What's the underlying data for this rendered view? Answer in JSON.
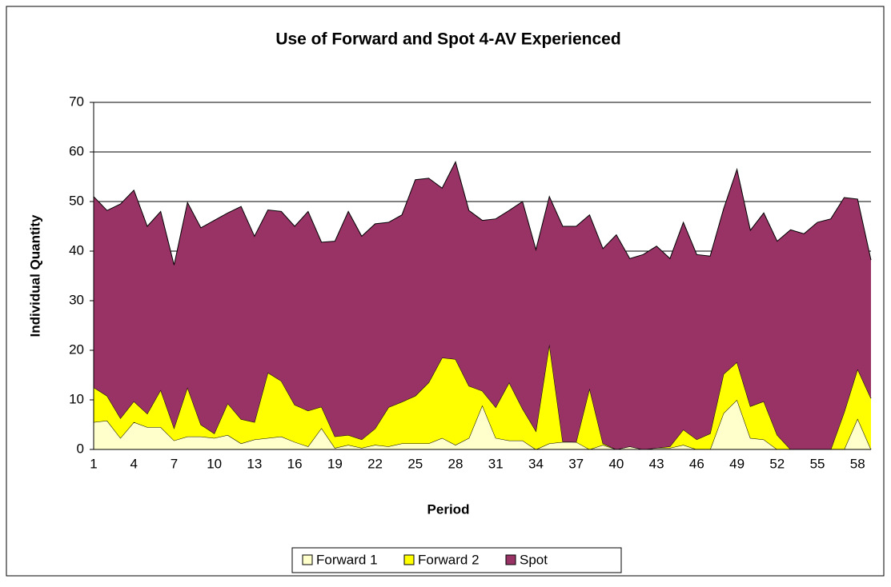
{
  "chart_data": {
    "type": "stacked_area",
    "title": "Use of Forward and Spot 4-AV Experienced",
    "x_label": "Period",
    "y_label": "Individual Quantity",
    "categories": [
      1,
      null,
      null,
      4,
      null,
      null,
      7,
      null,
      null,
      10,
      null,
      null,
      13,
      null,
      null,
      16,
      null,
      null,
      19,
      null,
      null,
      22,
      null,
      null,
      25,
      null,
      null,
      28,
      null,
      null,
      31,
      null,
      null,
      34,
      null,
      null,
      37,
      null,
      null,
      40,
      null,
      null,
      43,
      null,
      null,
      46,
      null,
      null,
      49,
      null,
      null,
      52,
      null,
      null,
      55,
      null,
      null,
      58,
      null
    ],
    "series": [
      {
        "name": "Forward 1",
        "color": "#ffffcc",
        "values": [
          5.5,
          5.8,
          2.3,
          5.5,
          4.5,
          4.5,
          1.8,
          2.6,
          2.6,
          2.3,
          2.9,
          1.2,
          2,
          2.3,
          2.6,
          1.5,
          0.6,
          4.3,
          0.3,
          0.9,
          0.3,
          0.9,
          0.6,
          1.2,
          1.2,
          1.2,
          2.3,
          0.9,
          2.3,
          8.9,
          2.3,
          1.8,
          1.8,
          0,
          1.2,
          1.5,
          1.5,
          0,
          0.9,
          0,
          0.6,
          0,
          0.3,
          0.3,
          0.9,
          0,
          0,
          7.3,
          10,
          2.3,
          2,
          0,
          0,
          0,
          0,
          0,
          0,
          6.2,
          0
        ]
      },
      {
        "name": "Forward 2",
        "color": "#ffff00",
        "values": [
          7,
          5,
          4,
          4.2,
          2.7,
          7.5,
          2.5,
          9.9,
          2.4,
          0.9,
          6.4,
          4.9,
          3.5,
          13.2,
          11.2,
          7.5,
          7.2,
          4.3,
          2.3,
          2,
          1.7,
          3.3,
          7.9,
          8.4,
          9.6,
          12.3,
          16.2,
          17.3,
          10.5,
          2.9,
          6.2,
          11.7,
          6.4,
          3.7,
          20,
          0.1,
          0,
          12.3,
          0.3,
          0,
          0,
          0,
          0,
          0.3,
          3.1,
          2,
          3.2,
          7.9,
          7.6,
          6.4,
          7.7,
          2.9,
          0,
          0,
          0,
          0,
          7.5,
          10,
          10.3
        ]
      },
      {
        "name": "Spot",
        "color": "#993366",
        "values": [
          38.5,
          37.4,
          43.2,
          42.6,
          37.8,
          36,
          32.9,
          37.3,
          39.7,
          43,
          38.4,
          42.9,
          37.5,
          32.8,
          34.2,
          36,
          40.2,
          33.2,
          39.4,
          45.1,
          41,
          41.3,
          37.3,
          37.7,
          43.6,
          41.2,
          34.2,
          39.8,
          35.4,
          34.4,
          38,
          34.7,
          41.8,
          36.6,
          29.8,
          43.4,
          43.5,
          35,
          39.3,
          43.3,
          37.9,
          39.3,
          40.7,
          37.9,
          41.8,
          37.3,
          35.8,
          33.3,
          38.9,
          35.5,
          38,
          39.1,
          44.3,
          43.5,
          45.8,
          46.5,
          43.3,
          34.3,
          27.9
        ]
      }
    ],
    "ylim": [
      0,
      70
    ],
    "yticks": [
      0,
      10,
      20,
      30,
      40,
      50,
      60,
      70
    ],
    "grid": true,
    "legend": "bottom"
  }
}
